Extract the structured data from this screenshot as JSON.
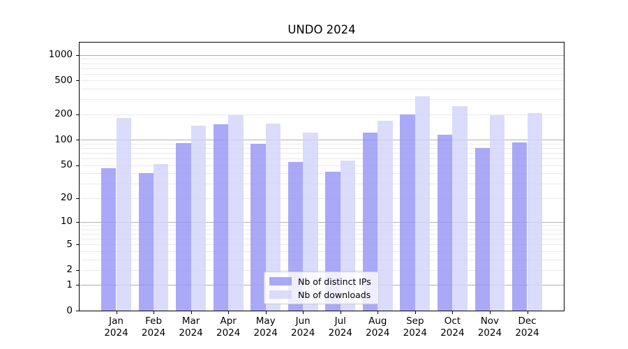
{
  "chart_data": {
    "type": "bar",
    "title": "UNDO 2024",
    "x": [
      "Jan",
      "Feb",
      "Mar",
      "Apr",
      "May",
      "Jun",
      "Jul",
      "Aug",
      "Sep",
      "Oct",
      "Nov",
      "Dec"
    ],
    "x_year": "2024",
    "series": [
      {
        "name": "Nb of distinct IPs",
        "color": "rgba(150,150,245,0.82)",
        "values": [
          46,
          40,
          92,
          152,
          90,
          55,
          42,
          121,
          198,
          114,
          80,
          94
        ]
      },
      {
        "name": "Nb of downloads",
        "color": "rgba(211,211,250,0.82)",
        "values": [
          182,
          52,
          148,
          197,
          157,
          122,
          57,
          168,
          327,
          248,
          197,
          208
        ]
      }
    ],
    "yscale": "log1p",
    "ylim": [
      0,
      1448
    ],
    "yticks": [
      0,
      1,
      2,
      5,
      10,
      20,
      50,
      100,
      200,
      500,
      1000
    ],
    "grid_major": [
      1,
      10,
      100,
      1000
    ],
    "grid_minor": [
      2,
      3,
      4,
      5,
      6,
      7,
      8,
      9,
      20,
      30,
      40,
      50,
      60,
      70,
      80,
      90,
      200,
      300,
      400,
      500,
      600,
      700,
      800,
      900
    ],
    "grid": true,
    "legend_position": "lower center",
    "xlabel": "",
    "ylabel": ""
  },
  "colors": {
    "background": "#ffffff",
    "axis": "#000000",
    "grid_major": "#b0b0b0",
    "grid_minor": "#e9e9e9",
    "bar_ips": "rgba(150,150,245,0.82)",
    "bar_downloads": "rgba(211,211,250,0.82)"
  }
}
